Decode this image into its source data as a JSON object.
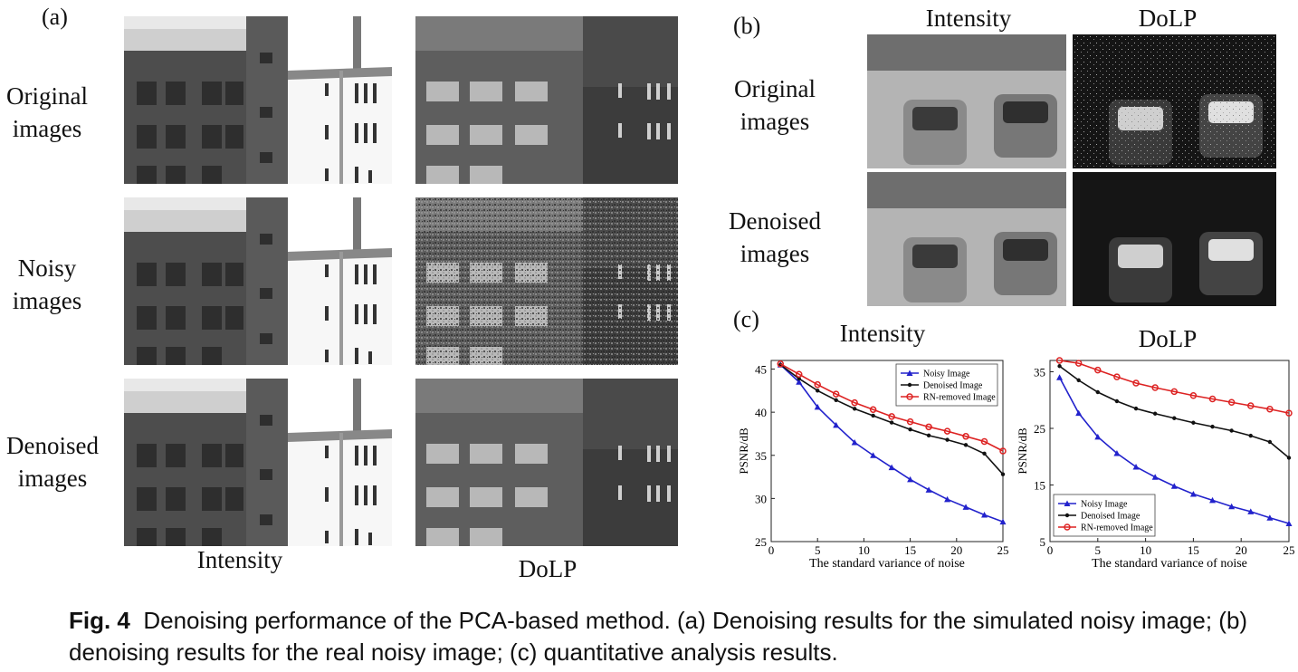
{
  "panel_a": {
    "letter": "(a)",
    "rows": [
      {
        "line1": "Original",
        "line2": "images"
      },
      {
        "line1": "Noisy",
        "line2": "images"
      },
      {
        "line1": "Denoised",
        "line2": "images"
      }
    ],
    "col_intensity": "Intensity",
    "col_dolp": "DoLP"
  },
  "panel_b": {
    "letter": "(b)",
    "col_intensity": "Intensity",
    "col_dolp": "DoLP",
    "rows": [
      {
        "line1": "Original",
        "line2": "images"
      },
      {
        "line1": "Denoised",
        "line2": "images"
      }
    ]
  },
  "panel_c": {
    "letter": "(c)",
    "title_left": "Intensity",
    "title_right": "DoLP"
  },
  "chart_data": [
    {
      "type": "line",
      "title": "Intensity",
      "xlabel": "The standard variance of noise",
      "ylabel": "PSNR/dB",
      "xlim": [
        0,
        25
      ],
      "ylim": [
        25,
        46
      ],
      "xticks": [
        0,
        5,
        10,
        15,
        20,
        25
      ],
      "yticks": [
        25,
        30,
        35,
        40,
        45
      ],
      "legend_position": "top-right",
      "x": [
        1,
        3,
        5,
        7,
        9,
        11,
        13,
        15,
        17,
        19,
        21,
        23,
        25
      ],
      "series": [
        {
          "name": "Noisy Image",
          "color": "#2222cc",
          "marker": "triangle",
          "values": [
            45.5,
            43.5,
            40.6,
            38.5,
            36.5,
            35.0,
            33.6,
            32.2,
            31.0,
            29.9,
            29.0,
            28.1,
            27.3
          ]
        },
        {
          "name": "Denoised Image",
          "color": "#111111",
          "marker": "dot",
          "values": [
            45.5,
            43.9,
            42.5,
            41.4,
            40.4,
            39.6,
            38.8,
            38.0,
            37.3,
            36.8,
            36.2,
            35.2,
            32.8
          ]
        },
        {
          "name": "RN-removed Image",
          "color": "#dd2222",
          "marker": "circle",
          "values": [
            45.6,
            44.4,
            43.2,
            42.1,
            41.1,
            40.3,
            39.5,
            38.9,
            38.3,
            37.8,
            37.2,
            36.6,
            35.5
          ]
        }
      ]
    },
    {
      "type": "line",
      "title": "DoLP",
      "xlabel": "The standard variance of noise",
      "ylabel": "PSNR/dB",
      "xlim": [
        0,
        25
      ],
      "ylim": [
        5,
        37
      ],
      "xticks": [
        0,
        5,
        10,
        15,
        20,
        25
      ],
      "yticks": [
        5,
        15,
        25,
        35
      ],
      "legend_position": "bottom-left",
      "x": [
        1,
        3,
        5,
        7,
        9,
        11,
        13,
        15,
        17,
        19,
        21,
        23,
        25
      ],
      "series": [
        {
          "name": "Noisy Image",
          "color": "#2222cc",
          "marker": "triangle",
          "values": [
            34.0,
            27.7,
            23.5,
            20.6,
            18.2,
            16.4,
            14.8,
            13.4,
            12.3,
            11.2,
            10.3,
            9.2,
            8.2
          ]
        },
        {
          "name": "Denoised Image",
          "color": "#111111",
          "marker": "dot",
          "values": [
            36.0,
            33.5,
            31.4,
            29.8,
            28.5,
            27.6,
            26.8,
            26.0,
            25.3,
            24.6,
            23.7,
            22.6,
            19.8
          ]
        },
        {
          "name": "RN-removed Image",
          "color": "#dd2222",
          "marker": "circle",
          "values": [
            37.0,
            36.5,
            35.3,
            34.1,
            33.0,
            32.2,
            31.5,
            30.8,
            30.2,
            29.6,
            29.0,
            28.4,
            27.7
          ]
        }
      ]
    }
  ],
  "caption": {
    "label": "Fig. 4",
    "text": "Denoising performance of the PCA-based method. (a) Denoising results for the simulated noisy image; (b) denoising results for the real noisy image; (c) quantitative analysis results."
  }
}
